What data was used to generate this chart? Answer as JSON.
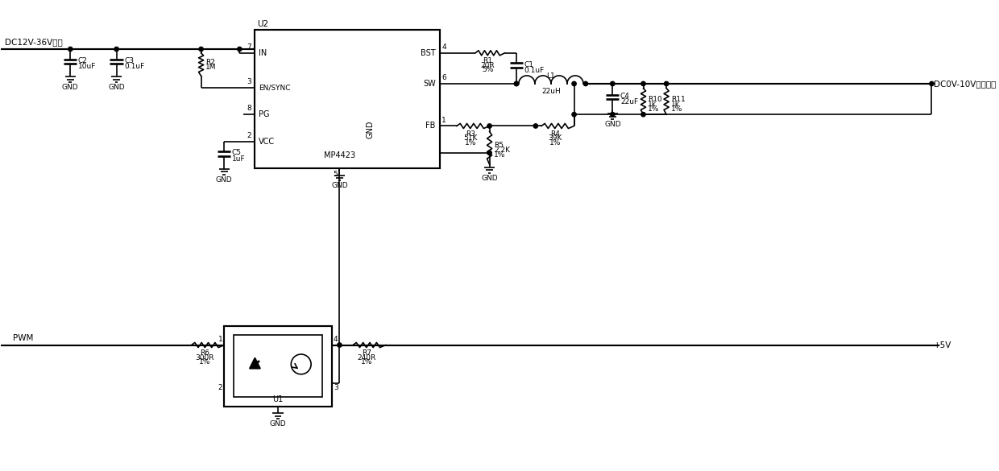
{
  "bg_color": "#ffffff",
  "line_color": "#000000",
  "lw": 1.2,
  "figsize": [
    12.4,
    5.85
  ],
  "dpi": 100,
  "xlim": [
    0,
    124
  ],
  "ylim": [
    0,
    58.5
  ]
}
